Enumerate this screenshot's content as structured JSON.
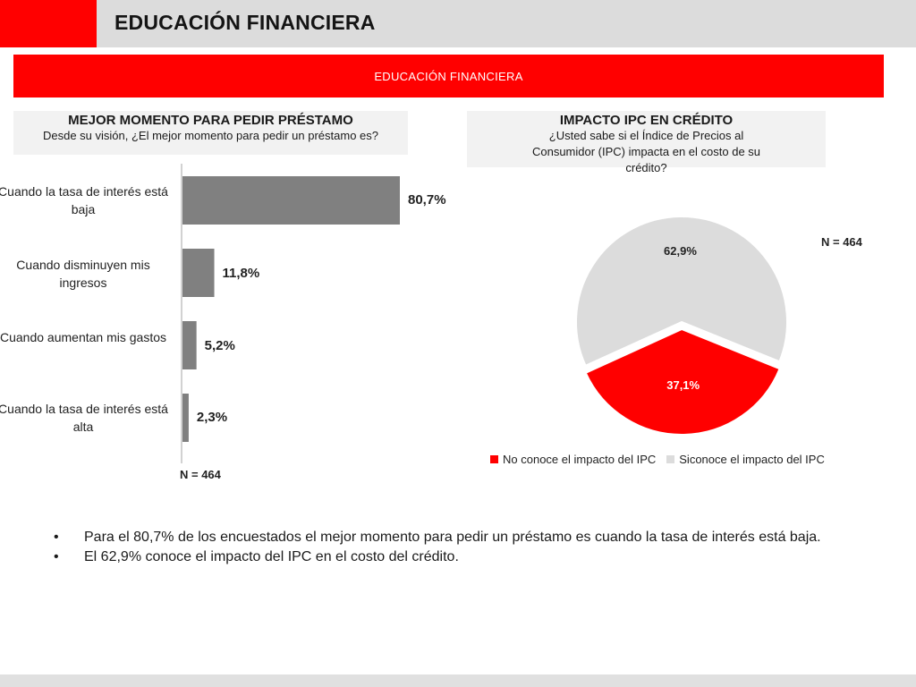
{
  "header": {
    "title": "EDUCACIÓN FINANCIERA"
  },
  "banner": {
    "text": "EDUCACIÓN FINANCIERA"
  },
  "left_panel": {
    "title": "MEJOR MOMENTO PARA PEDIR PRÉSTAMO",
    "subtitle": "Desde su visión, ¿El mejor momento para pedir un préstamo es?",
    "n_label": "N = 464"
  },
  "right_panel": {
    "title": "IMPACTO IPC EN CRÉDITO",
    "subtitle": "¿Usted sabe si el Índice de Precios al Consumidor (IPC) impacta en el costo de su crédito?",
    "n_label": "N = 464"
  },
  "colors": {
    "brand_red": "#ff0000",
    "bar_gray": "#808080",
    "pie_light": "#dcdcdc",
    "header_gray": "#dcdcdc"
  },
  "chart_data": [
    {
      "type": "bar",
      "orientation": "horizontal",
      "title": "MEJOR MOMENTO PARA PEDIR PRÉSTAMO",
      "categories": [
        "Cuando la tasa de interés está baja",
        "Cuando disminuyen mis ingresos",
        "Cuando aumentan mis gastos",
        "Cuando la tasa de interés está alta"
      ],
      "values": [
        80.7,
        11.8,
        5.2,
        2.3
      ],
      "value_labels": [
        "80,7%",
        "11,8%",
        "5,2%",
        "2,3%"
      ],
      "xlim": [
        0,
        100
      ],
      "grid": false
    },
    {
      "type": "pie",
      "title": "IMPACTO IPC EN CRÉDITO",
      "labels": [
        "No conoce el impacto del IPC",
        "Siconoce el impacto del IPC"
      ],
      "values": [
        37.1,
        62.9
      ],
      "value_labels": [
        "37,1%",
        "62,9%"
      ],
      "colors": [
        "#ff0000",
        "#dcdcdc"
      ],
      "legend_position": "bottom"
    }
  ],
  "bullets": [
    "Para el 80,7% de los encuestados el mejor momento para pedir un préstamo es cuando la tasa de interés está baja.",
    "El 62,9% conoce el impacto del IPC en el costo del crédito."
  ],
  "bullet_symbol": "•"
}
